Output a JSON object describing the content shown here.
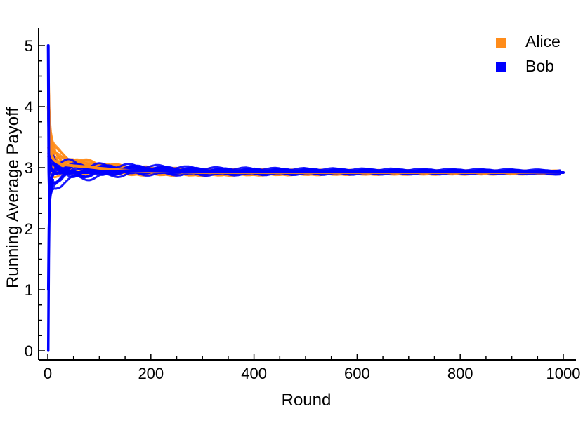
{
  "chart_data": {
    "type": "line",
    "title": "",
    "xlabel": "Round",
    "ylabel": "Running Average Payoff",
    "xlim": [
      0,
      1000
    ],
    "ylim": [
      0,
      5
    ],
    "xticks": [
      0,
      200,
      400,
      600,
      800,
      1000
    ],
    "yticks": [
      0,
      1,
      2,
      3,
      4,
      5
    ],
    "grid": false,
    "legend_position": "top-right",
    "series": [
      {
        "name": "Alice",
        "color": "#ff8c1a",
        "x": [
          1,
          2,
          3,
          4,
          5,
          6,
          8,
          10,
          13,
          16,
          20,
          25,
          30,
          40,
          50,
          65,
          80,
          100,
          130,
          160,
          200,
          250,
          300,
          400,
          500,
          600,
          700,
          800,
          900,
          1000
        ],
        "y": [
          4.0,
          3.8,
          3.5,
          3.4,
          3.3,
          3.25,
          3.2,
          3.15,
          3.12,
          3.1,
          3.08,
          3.06,
          3.05,
          3.04,
          3.03,
          3.02,
          3.01,
          2.99,
          2.97,
          2.95,
          2.94,
          2.93,
          2.92,
          2.92,
          2.92,
          2.92,
          2.92,
          2.92,
          2.92,
          2.92
        ]
      },
      {
        "name": "Bob",
        "color": "#0000ff",
        "x": [
          1,
          2,
          3,
          4,
          5,
          6,
          8,
          10,
          13,
          16,
          20,
          25,
          30,
          40,
          50,
          65,
          80,
          100,
          130,
          160,
          200,
          250,
          300,
          400,
          500,
          600,
          700,
          800,
          900,
          1000
        ],
        "y": [
          5.0,
          3.0,
          2.6,
          2.7,
          2.75,
          2.8,
          2.85,
          2.88,
          2.9,
          2.9,
          2.91,
          2.91,
          2.92,
          2.92,
          2.92,
          2.92,
          2.92,
          2.93,
          2.94,
          2.95,
          2.95,
          2.94,
          2.93,
          2.93,
          2.93,
          2.93,
          2.93,
          2.93,
          2.93,
          2.92
        ]
      }
    ]
  }
}
